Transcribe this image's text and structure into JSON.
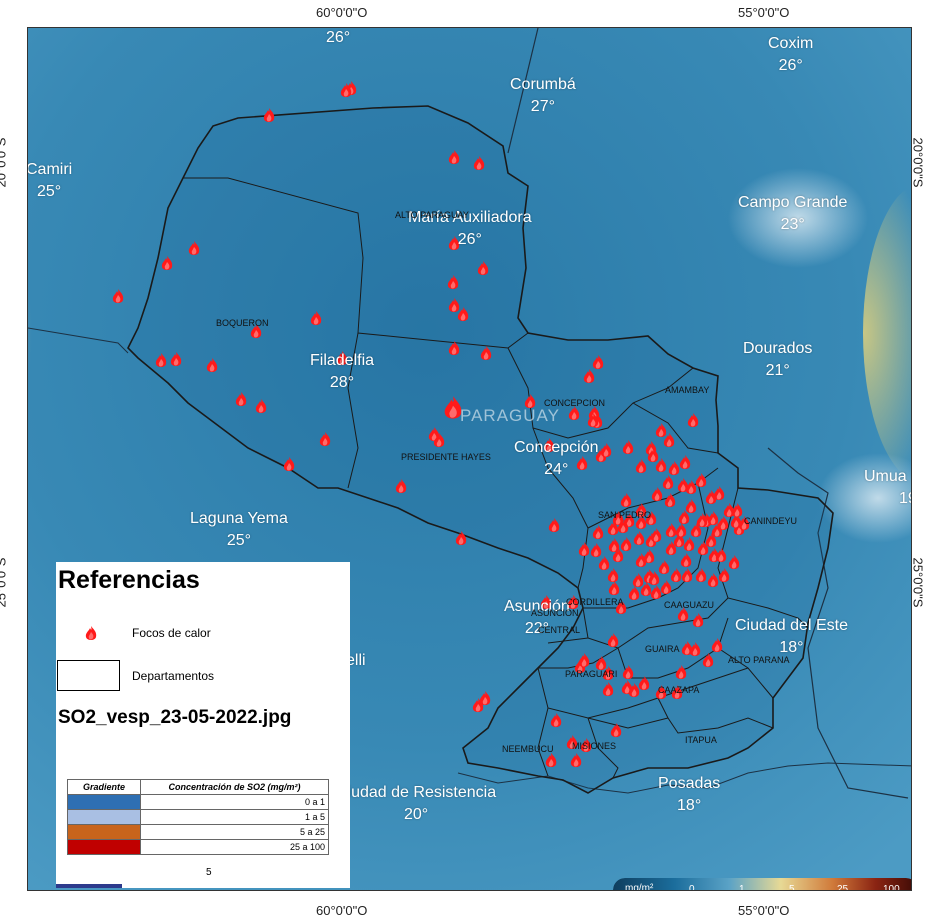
{
  "map": {
    "country_label": "PARAGUAY",
    "coords": {
      "top_left": "60°0'0\"O",
      "top_right": "55°0'0\"O",
      "bottom_left": "60°0'0\"O",
      "bottom_right": "55°0'0\"O",
      "left_top": "20°0'0\"S",
      "left_bottom": "25°0'0\"S",
      "right_top": "20°0'0\"S",
      "right_bottom": "25°0'0\"S"
    },
    "cities": [
      {
        "id": "city-top",
        "name": "",
        "temp": "26°"
      },
      {
        "id": "city-coxim",
        "name": "Coxim",
        "temp": "26°"
      },
      {
        "id": "city-corumba",
        "name": "Corumbá",
        "temp": "27°"
      },
      {
        "id": "city-camiri",
        "name": "Camiri",
        "temp": "25°"
      },
      {
        "id": "city-campo-grande",
        "name": "Campo Grande",
        "temp": "23°"
      },
      {
        "id": "city-maria-auxiliadora",
        "name": "María Auxiliadora",
        "temp": "26°"
      },
      {
        "id": "city-dourados",
        "name": "Dourados",
        "temp": "21°"
      },
      {
        "id": "city-filadelfia",
        "name": "Filadelfia",
        "temp": "28°"
      },
      {
        "id": "city-concepcion",
        "name": "Concepción",
        "temp": "24°"
      },
      {
        "id": "city-umuarama",
        "name": "Umua",
        "temp": "19"
      },
      {
        "id": "city-laguna-yema",
        "name": "Laguna Yema",
        "temp": "25°"
      },
      {
        "id": "city-asuncion",
        "name": "Asunción",
        "temp": "22°"
      },
      {
        "id": "city-ciudad-del-este",
        "name": "Ciudad del Este",
        "temp": "18°"
      },
      {
        "id": "city-resistencia",
        "name": "Ciudad de Resistencia",
        "temp": "20°"
      },
      {
        "id": "city-posadas",
        "name": "Posadas",
        "temp": "18°"
      },
      {
        "id": "city-elli",
        "name": "elli",
        "temp": ""
      }
    ],
    "departments": [
      "ALTO PARAGUAY",
      "BOQUERON",
      "PRESIDENTE HAYES",
      "CONCEPCION",
      "AMAMBAY",
      "SAN PEDRO",
      "CANINDEYU",
      "CORDILLERA",
      "CAAGUAZU",
      "CENTRAL",
      "ASUNCION",
      "GUAIRA",
      "ALTO PARANA",
      "PARAGUARI",
      "CAAZAPA",
      "NEEMBUCU",
      "MISIONES",
      "ITAPUA"
    ]
  },
  "legend": {
    "title": "Referencias",
    "fire_label": "Focos de calor",
    "dept_label": "Departamentos",
    "file_name": "SO2_vesp_23-05-2022.jpg",
    "table": {
      "col1": "Gradiente",
      "col2": "Concentración de SO2 (mg/m²)",
      "rows": [
        {
          "color": "#2e6fb3",
          "label": "0 a 1"
        },
        {
          "color": "#a9bfe3",
          "label": "1 a 5"
        },
        {
          "color": "#c8641c",
          "label": "5 a 25"
        },
        {
          "color": "#c00000",
          "label": "25 a 100"
        }
      ]
    },
    "stray_text": "5"
  },
  "colorbar": {
    "unit": "mg/m²",
    "ticks": [
      "0",
      "1",
      "5",
      "25",
      "100"
    ]
  }
}
